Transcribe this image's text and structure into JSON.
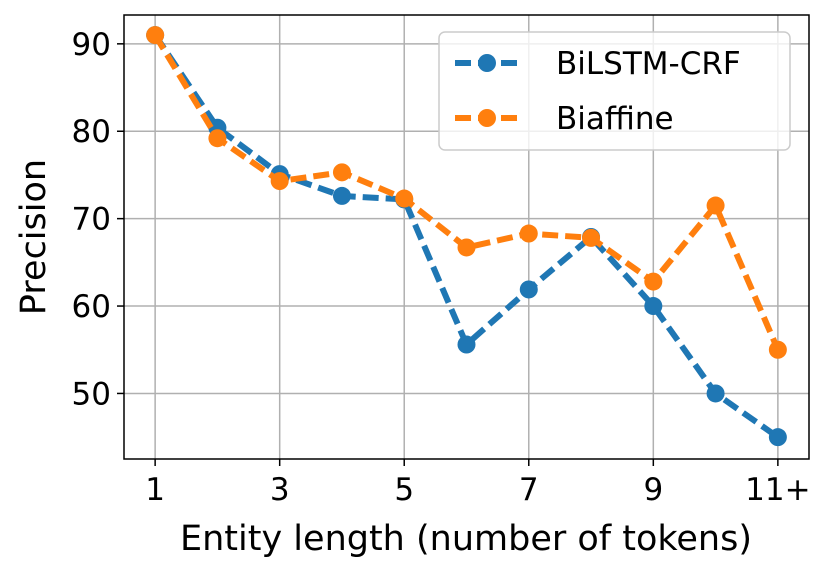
{
  "chart_data": {
    "type": "line",
    "xlabel": "Entity length (number of tokens)",
    "ylabel": "Precision",
    "x": [
      1,
      2,
      3,
      4,
      5,
      6,
      7,
      8,
      9,
      10,
      11
    ],
    "x_tick_labels": [
      "1",
      "3",
      "5",
      "7",
      "9",
      "11+"
    ],
    "x_tick_positions": [
      1,
      3,
      5,
      7,
      9,
      11
    ],
    "y_ticks": [
      50,
      60,
      70,
      80,
      90
    ],
    "xlim": [
      0.5,
      11.5
    ],
    "ylim": [
      42.5,
      93.3
    ],
    "grid": true,
    "legend_placement": "top-right",
    "series": [
      {
        "name": "BiLSTM-CRF",
        "color": "#1f77b4",
        "values": [
          91.0,
          80.4,
          75.1,
          72.6,
          72.2,
          55.6,
          61.9,
          67.9,
          60.0,
          50.0,
          45.0
        ]
      },
      {
        "name": "Biaffine",
        "color": "#ff7f0e",
        "values": [
          91.0,
          79.2,
          74.3,
          75.3,
          72.3,
          66.7,
          68.3,
          67.8,
          62.8,
          71.5,
          55.0
        ]
      }
    ]
  }
}
